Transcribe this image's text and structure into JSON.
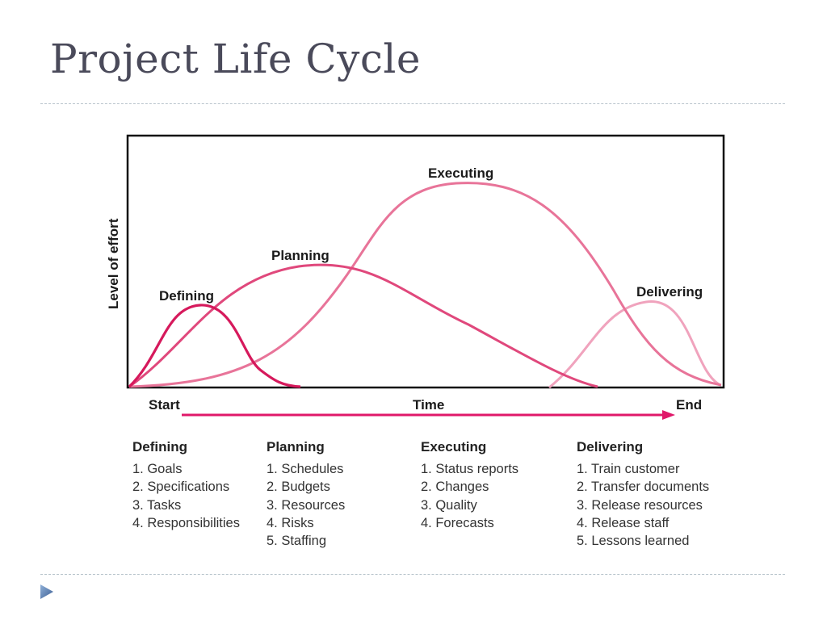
{
  "title": "Project Life Cycle",
  "diagram": {
    "y_axis_label": "Level of effort",
    "x_start": "Start",
    "x_label": "Time",
    "x_end": "End",
    "curves": [
      {
        "name": "Defining",
        "color": "#d6195c"
      },
      {
        "name": "Planning",
        "color": "#e0487c"
      },
      {
        "name": "Executing",
        "color": "#e87499"
      },
      {
        "name": "Delivering",
        "color": "#f0a3bd"
      }
    ],
    "arrow_color": "#e0186a"
  },
  "phases": [
    {
      "heading": "Defining",
      "items": [
        "1. Goals",
        "2. Specifications",
        "3. Tasks",
        "4. Responsibilities"
      ]
    },
    {
      "heading": "Planning",
      "items": [
        "1. Schedules",
        "2. Budgets",
        "3. Resources",
        "4. Risks",
        "5. Staffing"
      ]
    },
    {
      "heading": "Executing",
      "items": [
        "1. Status reports",
        "2. Changes",
        "3. Quality",
        "4. Forecasts"
      ]
    },
    {
      "heading": "Delivering",
      "items": [
        "1. Train customer",
        "2. Transfer documents",
        "3. Release resources",
        "4. Release staff",
        "5. Lessons learned"
      ]
    }
  ],
  "nav": {
    "icon": "triangle-right-icon",
    "color": "#4a6fa5"
  }
}
